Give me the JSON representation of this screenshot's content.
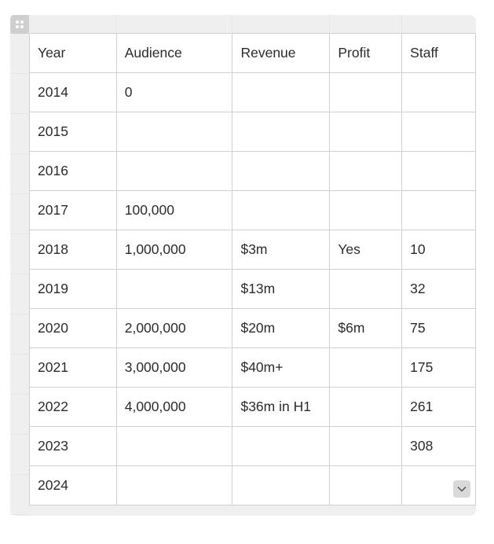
{
  "table": {
    "headers": [
      "Year",
      "Audience",
      "Revenue",
      "Profit",
      "Staff"
    ],
    "rows": [
      [
        "2014",
        "0",
        "",
        "",
        ""
      ],
      [
        "2015",
        "",
        "",
        "",
        ""
      ],
      [
        "2016",
        "",
        "",
        "",
        ""
      ],
      [
        "2017",
        "100,000",
        "",
        "",
        ""
      ],
      [
        "2018",
        "1,000,000",
        "$3m",
        "Yes",
        "10"
      ],
      [
        "2019",
        "",
        "$13m",
        "",
        "32"
      ],
      [
        "2020",
        "2,000,000",
        "$20m",
        "$6m",
        "75"
      ],
      [
        "2021",
        "3,000,000",
        "$40m+",
        "",
        "175"
      ],
      [
        "2022",
        "4,000,000",
        "$36m in H1",
        "",
        "261"
      ],
      [
        "2023",
        "",
        "",
        "",
        "308"
      ],
      [
        "2024",
        "",
        "",
        "",
        ""
      ]
    ]
  },
  "icons": {
    "drag_handle": "drag-handle-icon",
    "scroll": "chevron-down-icon"
  }
}
